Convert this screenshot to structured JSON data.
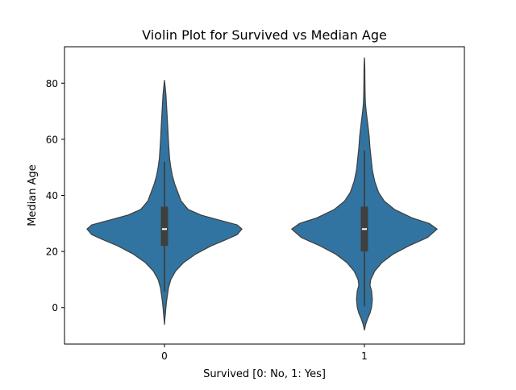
{
  "chart_data": {
    "type": "violin",
    "title": "Violin Plot for Survived vs Median Age",
    "xlabel": "Survived [0: No, 1: Yes]",
    "ylabel": "Median Age",
    "categories": [
      "0",
      "1"
    ],
    "xlim": [
      -0.5,
      1.5
    ],
    "ylim": [
      -13,
      93
    ],
    "yticks": [
      0,
      20,
      40,
      60,
      80
    ],
    "grid": false,
    "colors": {
      "body": "#3274a1",
      "edge": "#3f3f3f",
      "box": "#3f3f3f",
      "median": "#ffffff"
    },
    "violins": [
      {
        "category": "0",
        "min": 5.7,
        "q1": 22.0,
        "median": 28.0,
        "q3": 36.0,
        "whisker_high": 52.0,
        "profile": [
          [
            -6.0,
            0.0
          ],
          [
            -4.0,
            0.005
          ],
          [
            -2.0,
            0.012
          ],
          [
            0.0,
            0.018
          ],
          [
            2.0,
            0.025
          ],
          [
            4.0,
            0.035
          ],
          [
            7.0,
            0.05
          ],
          [
            10.0,
            0.08
          ],
          [
            13.0,
            0.14
          ],
          [
            16.0,
            0.24
          ],
          [
            19.0,
            0.39
          ],
          [
            22.0,
            0.59
          ],
          [
            24.0,
            0.76
          ],
          [
            26.0,
            0.92
          ],
          [
            28.0,
            0.98
          ],
          [
            29.5,
            0.92
          ],
          [
            31.0,
            0.72
          ],
          [
            33.0,
            0.46
          ],
          [
            35.0,
            0.3
          ],
          [
            38.0,
            0.21
          ],
          [
            41.0,
            0.17
          ],
          [
            44.0,
            0.13
          ],
          [
            47.0,
            0.1
          ],
          [
            50.0,
            0.08
          ],
          [
            53.0,
            0.065
          ],
          [
            57.0,
            0.055
          ],
          [
            61.0,
            0.047
          ],
          [
            65.0,
            0.04
          ],
          [
            69.0,
            0.032
          ],
          [
            73.0,
            0.024
          ],
          [
            76.0,
            0.018
          ],
          [
            78.0,
            0.011
          ],
          [
            80.0,
            0.004
          ],
          [
            81.0,
            0.0
          ]
        ]
      },
      {
        "category": "1",
        "min": 0.42,
        "q1": 20.0,
        "median": 28.0,
        "q3": 36.0,
        "whisker_high": 56.0,
        "profile": [
          [
            -8.0,
            0.0
          ],
          [
            -6.0,
            0.015
          ],
          [
            -4.0,
            0.04
          ],
          [
            -2.0,
            0.07
          ],
          [
            0.0,
            0.09
          ],
          [
            3.0,
            0.1
          ],
          [
            6.0,
            0.09
          ],
          [
            8.0,
            0.07
          ],
          [
            10.0,
            0.08
          ],
          [
            13.0,
            0.13
          ],
          [
            16.0,
            0.22
          ],
          [
            19.0,
            0.36
          ],
          [
            22.0,
            0.56
          ],
          [
            25.0,
            0.8
          ],
          [
            28.0,
            0.92
          ],
          [
            30.0,
            0.82
          ],
          [
            32.0,
            0.6
          ],
          [
            35.0,
            0.38
          ],
          [
            38.0,
            0.25
          ],
          [
            41.0,
            0.18
          ],
          [
            45.0,
            0.13
          ],
          [
            49.0,
            0.1
          ],
          [
            53.0,
            0.085
          ],
          [
            57.0,
            0.07
          ],
          [
            61.0,
            0.06
          ],
          [
            64.0,
            0.048
          ],
          [
            67.0,
            0.035
          ],
          [
            70.0,
            0.022
          ],
          [
            73.0,
            0.012
          ],
          [
            77.0,
            0.008
          ],
          [
            81.0,
            0.006
          ],
          [
            85.0,
            0.005
          ],
          [
            88.0,
            0.002
          ],
          [
            89.0,
            0.0
          ]
        ]
      }
    ]
  }
}
